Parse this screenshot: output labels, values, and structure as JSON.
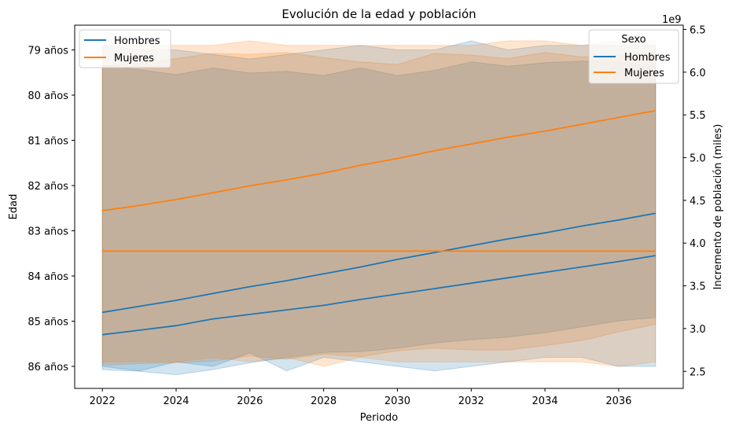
{
  "chart_data": {
    "type": "line",
    "title": "Evolución de la edad y población",
    "xlabel": "Periodo",
    "ylabel_left": "Edad",
    "ylabel_right": "Incremento de población (miles)",
    "right_axis_offset_label": "1e9",
    "x": [
      2022,
      2023,
      2024,
      2025,
      2026,
      2027,
      2028,
      2029,
      2030,
      2031,
      2032,
      2033,
      2034,
      2035,
      2036,
      2037
    ],
    "x_ticks": [
      2022,
      2024,
      2026,
      2028,
      2030,
      2032,
      2034,
      2036
    ],
    "xlim": [
      2021.25,
      2037.75
    ],
    "left_axis": {
      "ticks": [
        79,
        80,
        81,
        82,
        83,
        84,
        85,
        86
      ],
      "tick_labels": [
        "79 años",
        "80 años",
        "81 años",
        "82 años",
        "83 años",
        "84 años",
        "85 años",
        "86 años"
      ],
      "inverted": true
    },
    "right_axis": {
      "ticks": [
        2.5,
        3.0,
        3.5,
        4.0,
        4.5,
        5.0,
        5.5,
        6.0,
        6.5
      ],
      "tick_labels": [
        "2.5",
        "3.0",
        "3.5",
        "4.0",
        "4.5",
        "5.0",
        "5.5",
        "6.0",
        "6.5"
      ],
      "ylim": [
        2.3,
        6.55
      ],
      "units_multiplier": 1000000000
    },
    "left_series": [
      {
        "name": "Hombres",
        "color": "#1f77b4",
        "y_axis": "right",
        "values": [
          3.19,
          3.26,
          3.33,
          3.41,
          3.49,
          3.56,
          3.64,
          3.72,
          3.81,
          3.89,
          3.97,
          4.05,
          4.12,
          4.2,
          4.27,
          4.35
        ],
        "band_upper": [
          6.08,
          6.03,
          5.97,
          6.05,
          5.99,
          6.01,
          5.96,
          6.05,
          5.96,
          6.02,
          6.12,
          6.07,
          6.11,
          6.13,
          6.12,
          6.06
        ],
        "band_lower": [
          2.52,
          2.5,
          2.46,
          2.52,
          2.6,
          2.66,
          2.72,
          2.73,
          2.77,
          2.83,
          2.87,
          2.9,
          2.95,
          3.02,
          3.09,
          3.13
        ]
      },
      {
        "name": "Mujeres",
        "color": "#ff7f0e",
        "y_axis": "right",
        "values": [
          4.38,
          4.44,
          4.51,
          4.59,
          4.67,
          4.74,
          4.82,
          4.91,
          4.99,
          5.08,
          5.16,
          5.24,
          5.31,
          5.39,
          5.47,
          5.55
        ],
        "band_upper": [
          6.07,
          6.11,
          6.16,
          6.22,
          6.21,
          6.23,
          6.17,
          6.12,
          6.09,
          6.22,
          6.2,
          6.16,
          6.23,
          6.18,
          6.2,
          6.24
        ],
        "band_lower": [
          2.57,
          2.59,
          2.6,
          2.62,
          2.68,
          2.64,
          2.7,
          2.67,
          2.74,
          2.77,
          2.75,
          2.75,
          2.8,
          2.86,
          2.96,
          3.05
        ]
      }
    ],
    "right_series": [
      {
        "name": "Hombres",
        "color": "#1f77b4",
        "y_axis": "left",
        "values": [
          85.3,
          85.2,
          85.1,
          84.95,
          84.85,
          84.75,
          84.65,
          84.52,
          84.4,
          84.28,
          84.16,
          84.04,
          83.92,
          83.8,
          83.68,
          83.55
        ],
        "band_lower": [
          86.0,
          86.1,
          85.9,
          86.0,
          85.7,
          86.1,
          85.8,
          85.9,
          86.0,
          86.1,
          86.0,
          85.9,
          85.8,
          85.8,
          86.0,
          86.0
        ],
        "band_upper": [
          78.9,
          79.0,
          79.0,
          79.1,
          79.2,
          79.1,
          79.0,
          78.9,
          79.0,
          79.0,
          78.8,
          79.0,
          78.9,
          78.9,
          78.9,
          78.9
        ]
      },
      {
        "name": "Mujeres",
        "color": "#ff7f0e",
        "y_axis": "left",
        "values": [
          83.45,
          83.45,
          83.45,
          83.45,
          83.45,
          83.45,
          83.45,
          83.45,
          83.45,
          83.45,
          83.45,
          83.45,
          83.45,
          83.45,
          83.45,
          83.45
        ],
        "band_lower": [
          85.9,
          85.9,
          85.9,
          85.8,
          85.9,
          85.8,
          86.0,
          85.8,
          85.9,
          85.9,
          85.9,
          85.9,
          85.9,
          85.9,
          86.0,
          85.9
        ],
        "band_upper": [
          78.9,
          78.9,
          78.9,
          78.9,
          78.8,
          78.9,
          78.9,
          78.9,
          78.9,
          78.9,
          78.9,
          78.8,
          78.8,
          78.9,
          78.8,
          78.8
        ]
      }
    ],
    "legend_left": {
      "placement": "upper-left",
      "entries": [
        {
          "name": "Hombres",
          "color": "#1f77b4"
        },
        {
          "name": "Mujeres",
          "color": "#ff7f0e"
        }
      ]
    },
    "legend_right": {
      "placement": "upper-right",
      "title": "Sexo",
      "entries": [
        {
          "name": "Hombres",
          "color": "#1f77b4"
        },
        {
          "name": "Mujeres",
          "color": "#ff7f0e"
        }
      ]
    },
    "grid": false
  }
}
